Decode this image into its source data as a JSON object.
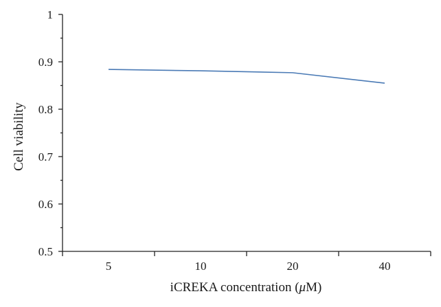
{
  "chart_data": {
    "type": "line",
    "title": "",
    "xlabel": "iCREKA concentration (",
    "xlabel_unit_greek": "μ",
    "xlabel_unit_rest": "M)",
    "ylabel": "Cell viability",
    "categories": [
      "5",
      "10",
      "20",
      "40"
    ],
    "series": [
      {
        "values": [
          0.884,
          0.881,
          0.877,
          0.855
        ],
        "color": "#4a7ab5"
      }
    ],
    "ylim": [
      0.5,
      1
    ],
    "yticks": [
      "0.5",
      "0.6",
      "0.7",
      "0.8",
      "0.9",
      "1"
    ],
    "grid": false,
    "legend": "none"
  }
}
